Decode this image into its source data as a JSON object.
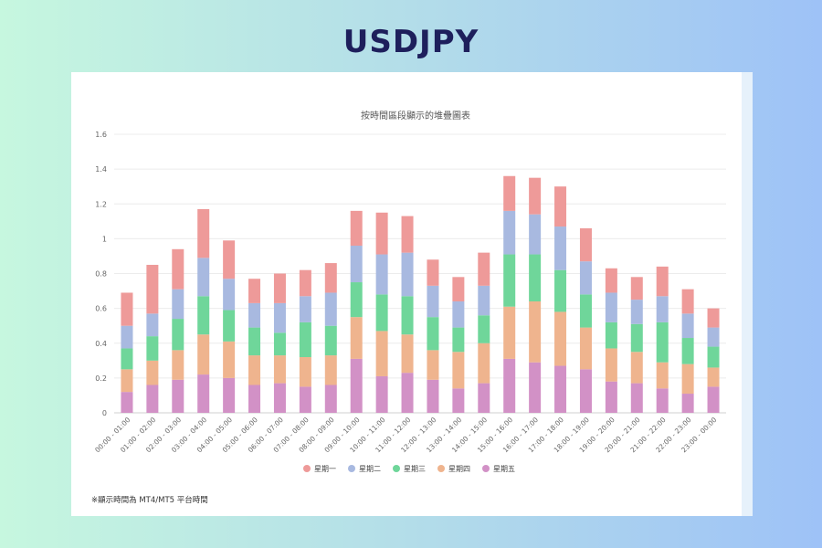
{
  "page": {
    "title": "USDJPY"
  },
  "footnote": "※顯示時間為 MT4/MT5 平台時間",
  "colors": {
    "mon": "#ee9a99",
    "tue": "#a8b9e0",
    "wed": "#6fd69a",
    "thu": "#efb48e",
    "fri": "#d291c6"
  },
  "chart_data": {
    "type": "bar",
    "stacked": true,
    "title": "按時間區段顯示的堆疊圖表",
    "xlabel": "",
    "ylabel": "",
    "ylim": [
      0,
      1.6
    ],
    "yticks": [
      "0",
      "0.2",
      "0.4",
      "0.6",
      "0.8",
      "1",
      "1.2",
      "1.4",
      "1.6"
    ],
    "grid": true,
    "legend_position": "bottom",
    "categories": [
      "00:00 - 01:00",
      "01:00 - 02:00",
      "02:00 - 03:00",
      "03:00 - 04:00",
      "04:00 - 05:00",
      "05:00 - 06:00",
      "06:00 - 07:00",
      "07:00 - 08:00",
      "08:00 - 09:00",
      "09:00 - 10:00",
      "10:00 - 11:00",
      "11:00 - 12:00",
      "12:00 - 13:00",
      "13:00 - 14:00",
      "14:00 - 15:00",
      "15:00 - 16:00",
      "16:00 - 17:00",
      "17:00 - 18:00",
      "18:00 - 19:00",
      "19:00 - 20:00",
      "20:00 - 21:00",
      "21:00 - 22:00",
      "22:00 - 23:00",
      "23:00 - 00:00"
    ],
    "series": [
      {
        "name": "星期五",
        "color": "#d291c6",
        "values": [
          0.12,
          0.16,
          0.19,
          0.22,
          0.2,
          0.16,
          0.17,
          0.15,
          0.16,
          0.31,
          0.21,
          0.23,
          0.19,
          0.14,
          0.17,
          0.31,
          0.29,
          0.27,
          0.25,
          0.18,
          0.17,
          0.14,
          0.11,
          0.15
        ]
      },
      {
        "name": "星期四",
        "color": "#efb48e",
        "values": [
          0.13,
          0.14,
          0.17,
          0.23,
          0.21,
          0.17,
          0.16,
          0.17,
          0.17,
          0.24,
          0.26,
          0.22,
          0.17,
          0.21,
          0.23,
          0.3,
          0.35,
          0.31,
          0.24,
          0.19,
          0.18,
          0.15,
          0.17,
          0.11
        ]
      },
      {
        "name": "星期三",
        "color": "#6fd69a",
        "values": [
          0.12,
          0.14,
          0.18,
          0.22,
          0.18,
          0.16,
          0.13,
          0.2,
          0.17,
          0.2,
          0.21,
          0.22,
          0.19,
          0.14,
          0.16,
          0.3,
          0.27,
          0.24,
          0.19,
          0.15,
          0.16,
          0.23,
          0.15,
          0.12
        ]
      },
      {
        "name": "星期二",
        "color": "#a8b9e0",
        "values": [
          0.13,
          0.13,
          0.17,
          0.22,
          0.18,
          0.14,
          0.17,
          0.15,
          0.19,
          0.21,
          0.23,
          0.25,
          0.18,
          0.15,
          0.17,
          0.25,
          0.23,
          0.25,
          0.19,
          0.17,
          0.14,
          0.15,
          0.14,
          0.11
        ]
      },
      {
        "name": "星期一",
        "color": "#ee9a99",
        "values": [
          0.19,
          0.28,
          0.23,
          0.28,
          0.22,
          0.14,
          0.17,
          0.15,
          0.17,
          0.2,
          0.24,
          0.21,
          0.15,
          0.14,
          0.19,
          0.2,
          0.21,
          0.23,
          0.19,
          0.14,
          0.13,
          0.17,
          0.14,
          0.11
        ]
      }
    ],
    "legend": [
      "星期一",
      "星期二",
      "星期三",
      "星期四",
      "星期五"
    ]
  }
}
